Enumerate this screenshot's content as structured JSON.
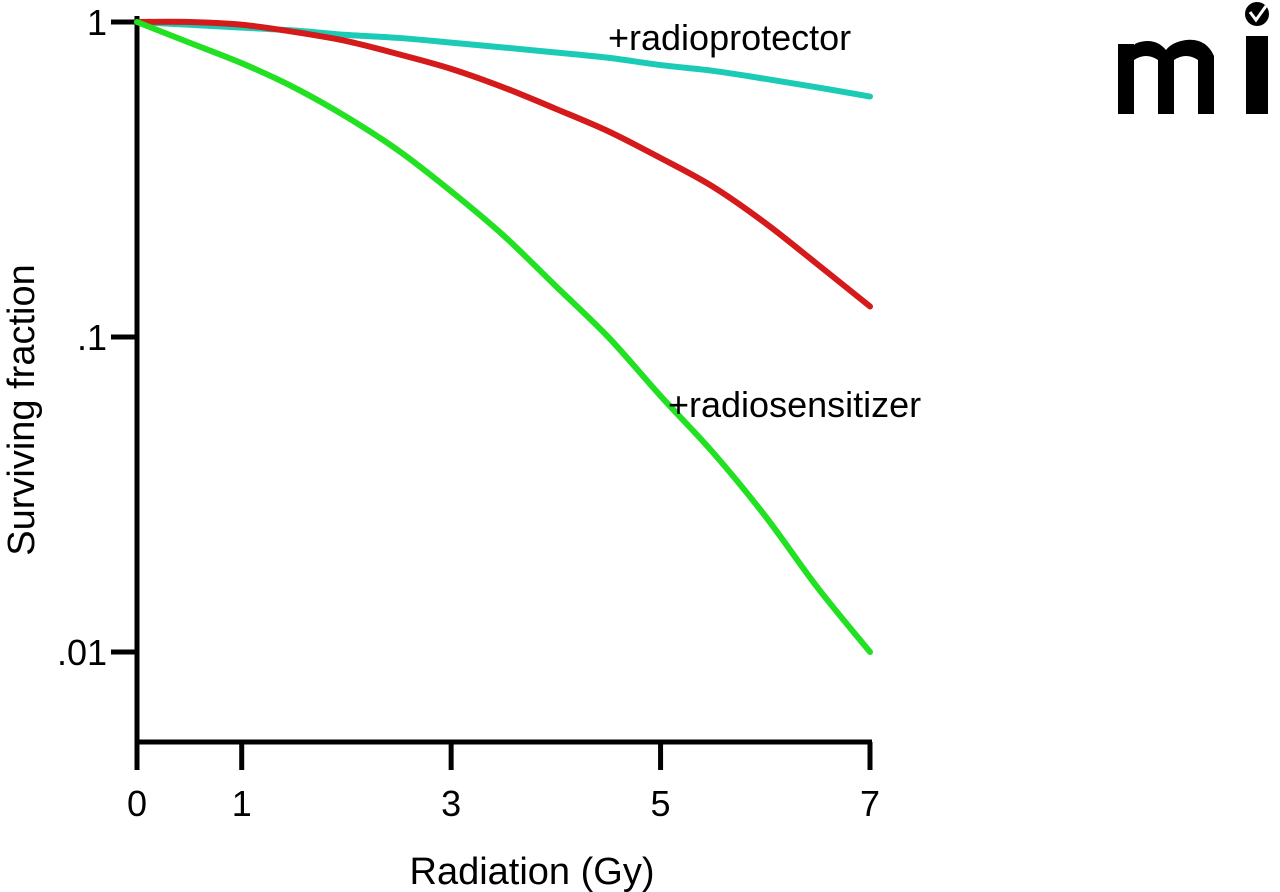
{
  "chart_data": {
    "type": "line",
    "title": "",
    "xlabel": "Radiation (Gy)",
    "ylabel": "Surviving fraction",
    "xlim": [
      0,
      7
    ],
    "ylim": [
      0.005,
      1
    ],
    "y_scale": "log",
    "grid": false,
    "x_ticks": [
      {
        "value": 0,
        "label": "0"
      },
      {
        "value": 1,
        "label": "1"
      },
      {
        "value": 3,
        "label": "3"
      },
      {
        "value": 5,
        "label": "5"
      },
      {
        "value": 7,
        "label": "7"
      }
    ],
    "y_ticks": [
      {
        "value": 1,
        "label": "1"
      },
      {
        "value": 0.1,
        "label": ".1"
      },
      {
        "value": 0.01,
        "label": ".01"
      }
    ],
    "x": [
      0,
      0.5,
      1,
      1.5,
      2,
      2.5,
      3,
      3.5,
      4,
      4.5,
      5,
      5.5,
      6,
      6.5,
      7
    ],
    "series": [
      {
        "label": "+radioprotector",
        "color": "#1ccbb5",
        "values": [
          1.0,
          0.98,
          0.96,
          0.94,
          0.91,
          0.89,
          0.86,
          0.83,
          0.8,
          0.77,
          0.73,
          0.7,
          0.66,
          0.62,
          0.58
        ]
      },
      {
        "color": "#d41a1a",
        "values": [
          1.0,
          1.0,
          0.98,
          0.93,
          0.87,
          0.79,
          0.71,
          0.62,
          0.53,
          0.45,
          0.37,
          0.3,
          0.23,
          0.17,
          0.125
        ]
      },
      {
        "label": "+radiosensitizer",
        "color": "#22e022",
        "values": [
          1.0,
          0.86,
          0.74,
          0.62,
          0.5,
          0.39,
          0.29,
          0.21,
          0.145,
          0.1,
          0.065,
          0.043,
          0.027,
          0.016,
          0.01
        ]
      }
    ]
  },
  "logo": {
    "text": "mi",
    "color": "#000000"
  }
}
